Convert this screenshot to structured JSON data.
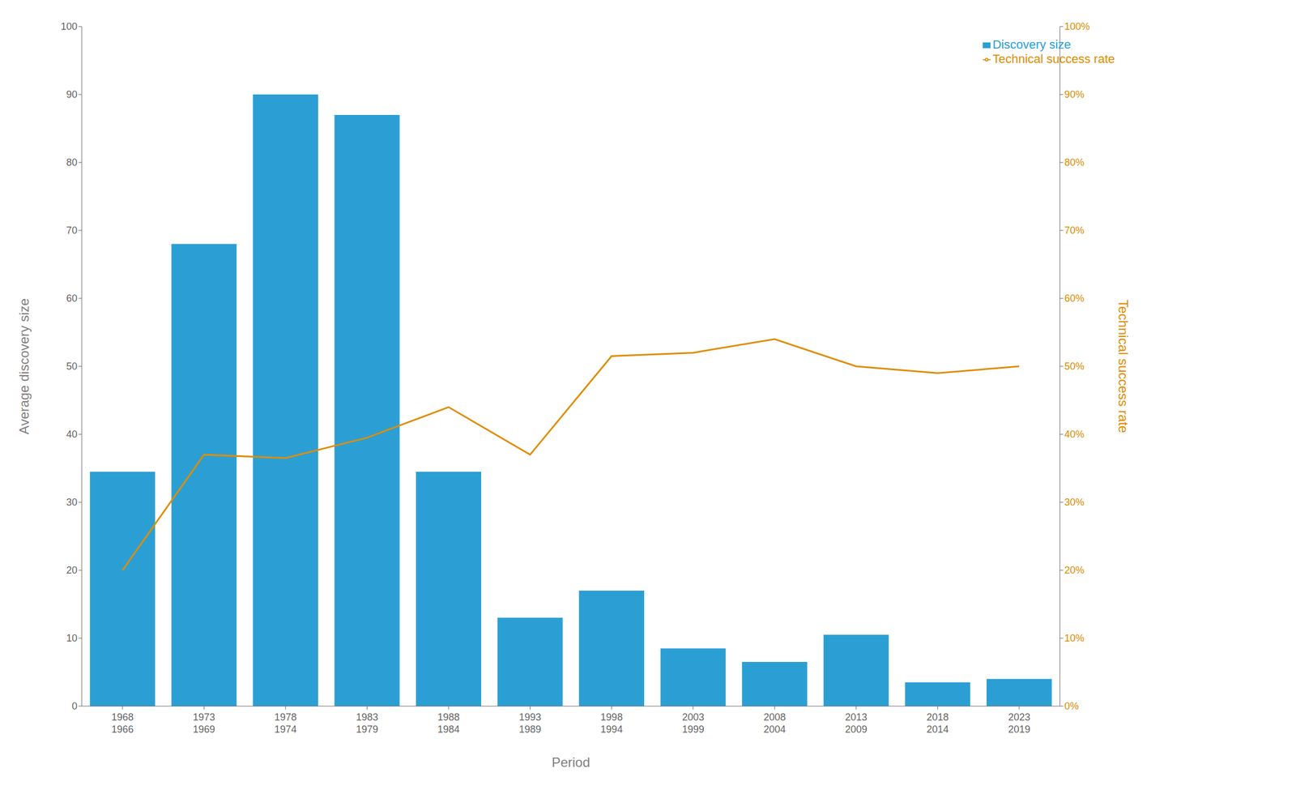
{
  "chart_data": {
    "type": "bar",
    "xlabel": "Period",
    "ylabel": "Average discovery size",
    "y2label": "Technical success rate",
    "categories": [
      "1968\n1966",
      "1973\n1969",
      "1978\n1974",
      "1983\n1979",
      "1988\n1984",
      "1993\n1989",
      "1998\n1994",
      "2003\n1999",
      "2008\n2004",
      "2013\n2009",
      "2018\n2014",
      "2023\n2019"
    ],
    "series": [
      {
        "name": "Discovery size",
        "type": "bar",
        "color": "#2b9fd4",
        "values": [
          34.5,
          68,
          90,
          87,
          34.5,
          13,
          17,
          8.5,
          6.5,
          10.5,
          3.5,
          4
        ]
      },
      {
        "name": "Technical success rate",
        "type": "line",
        "color": "#e08c00",
        "axis": "y2",
        "values": [
          20,
          37,
          36.5,
          39.5,
          44,
          37,
          51.5,
          52,
          54,
          50,
          49,
          50
        ]
      }
    ],
    "ylim": [
      0,
      100
    ],
    "yticks": [
      0,
      10,
      20,
      30,
      40,
      50,
      60,
      70,
      80,
      90,
      100
    ],
    "y2lim": [
      0,
      100
    ],
    "y2ticks": [
      {
        "value": 0,
        "label": "0%"
      },
      {
        "value": 10,
        "label": "10%"
      },
      {
        "value": 20,
        "label": "20%"
      },
      {
        "value": 30,
        "label": "30%"
      },
      {
        "value": 40,
        "label": "40%"
      },
      {
        "value": 50,
        "label": "50%"
      },
      {
        "value": 60,
        "label": "60%"
      },
      {
        "value": 70,
        "label": "70%"
      },
      {
        "value": 80,
        "label": "80%"
      },
      {
        "value": 90,
        "label": "90%"
      },
      {
        "value": 100,
        "label": "100%"
      }
    ],
    "grid": false,
    "legend": "upper right"
  }
}
